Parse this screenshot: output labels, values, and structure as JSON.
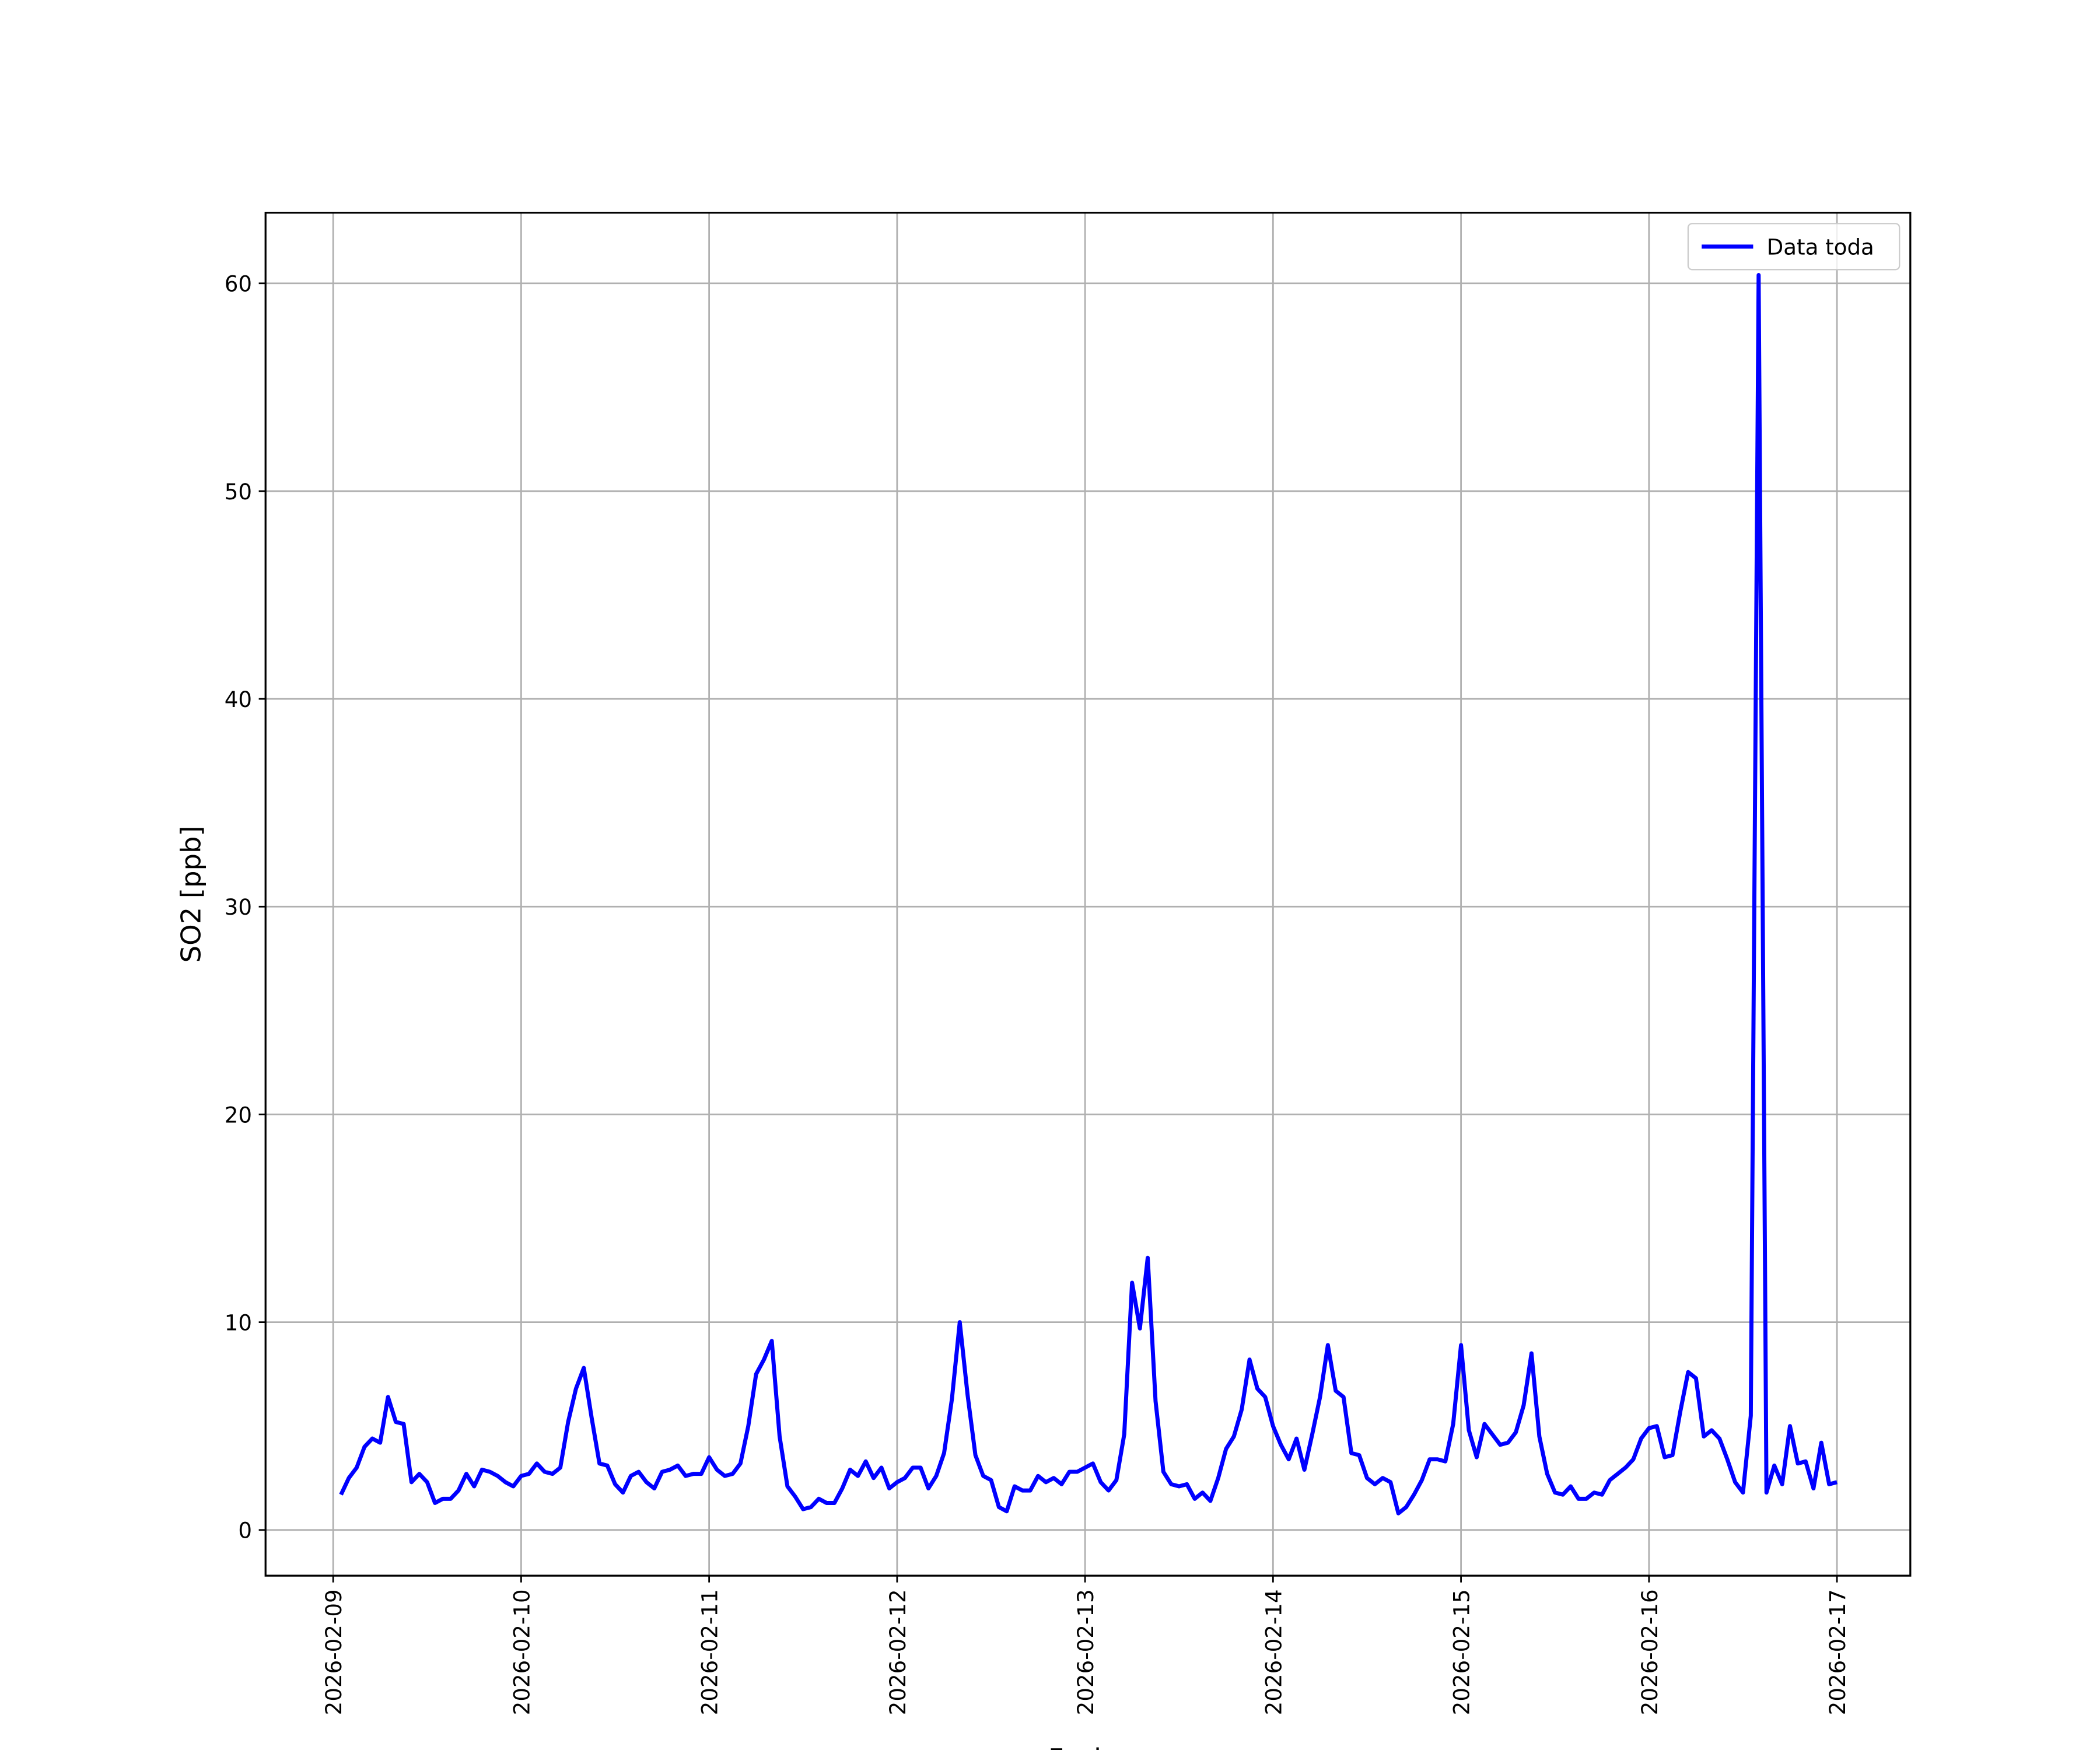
{
  "chart_data": {
    "type": "line",
    "xlabel": "Fecha",
    "ylabel": "SO2 [ppb]",
    "xlim": [
      "2026-02-08T15:22",
      "2026-02-17T09:22"
    ],
    "ylim": [
      -2.2,
      63.4
    ],
    "xticks": [
      "2026-02-09",
      "2026-02-10",
      "2026-02-11",
      "2026-02-12",
      "2026-02-13",
      "2026-02-14",
      "2026-02-15",
      "2026-02-16",
      "2026-02-17"
    ],
    "yticks": [
      0,
      10,
      20,
      30,
      40,
      50,
      60
    ],
    "grid": true,
    "legend": "upper right",
    "x": [
      "2026-02-09T01:00",
      "2026-02-09T02:00",
      "2026-02-09T03:00",
      "2026-02-09T04:00",
      "2026-02-09T05:00",
      "2026-02-09T06:00",
      "2026-02-09T07:00",
      "2026-02-09T08:00",
      "2026-02-09T09:00",
      "2026-02-09T10:00",
      "2026-02-09T11:00",
      "2026-02-09T12:00",
      "2026-02-09T13:00",
      "2026-02-09T14:00",
      "2026-02-09T15:00",
      "2026-02-09T16:00",
      "2026-02-09T17:00",
      "2026-02-09T18:00",
      "2026-02-09T19:00",
      "2026-02-09T20:00",
      "2026-02-09T21:00",
      "2026-02-09T22:00",
      "2026-02-09T23:00",
      "2026-02-10T00:00",
      "2026-02-10T01:00",
      "2026-02-10T02:00",
      "2026-02-10T03:00",
      "2026-02-10T04:00",
      "2026-02-10T05:00",
      "2026-02-10T06:00",
      "2026-02-10T07:00",
      "2026-02-10T08:00",
      "2026-02-10T09:00",
      "2026-02-10T10:00",
      "2026-02-10T11:00",
      "2026-02-10T12:00",
      "2026-02-10T13:00",
      "2026-02-10T14:00",
      "2026-02-10T15:00",
      "2026-02-10T16:00",
      "2026-02-10T17:00",
      "2026-02-10T18:00",
      "2026-02-10T19:00",
      "2026-02-10T20:00",
      "2026-02-10T21:00",
      "2026-02-10T22:00",
      "2026-02-10T23:00",
      "2026-02-11T00:00",
      "2026-02-11T01:00",
      "2026-02-11T02:00",
      "2026-02-11T03:00",
      "2026-02-11T04:00",
      "2026-02-11T05:00",
      "2026-02-11T06:00",
      "2026-02-11T07:00",
      "2026-02-11T08:00",
      "2026-02-11T09:00",
      "2026-02-11T10:00",
      "2026-02-11T11:00",
      "2026-02-11T12:00",
      "2026-02-11T13:00",
      "2026-02-11T14:00",
      "2026-02-11T15:00",
      "2026-02-11T16:00",
      "2026-02-11T17:00",
      "2026-02-11T18:00",
      "2026-02-11T19:00",
      "2026-02-11T20:00",
      "2026-02-11T21:00",
      "2026-02-11T22:00",
      "2026-02-11T23:00",
      "2026-02-12T00:00",
      "2026-02-12T01:00",
      "2026-02-12T02:00",
      "2026-02-12T03:00",
      "2026-02-12T04:00",
      "2026-02-12T05:00",
      "2026-02-12T06:00",
      "2026-02-12T07:00",
      "2026-02-12T08:00",
      "2026-02-12T09:00",
      "2026-02-12T10:00",
      "2026-02-12T11:00",
      "2026-02-12T12:00",
      "2026-02-12T13:00",
      "2026-02-12T14:00",
      "2026-02-12T15:00",
      "2026-02-12T16:00",
      "2026-02-12T17:00",
      "2026-02-12T18:00",
      "2026-02-12T19:00",
      "2026-02-12T20:00",
      "2026-02-12T21:00",
      "2026-02-12T22:00",
      "2026-02-12T23:00",
      "2026-02-13T00:00",
      "2026-02-13T01:00",
      "2026-02-13T02:00",
      "2026-02-13T03:00",
      "2026-02-13T04:00",
      "2026-02-13T05:00",
      "2026-02-13T06:00",
      "2026-02-13T07:00",
      "2026-02-13T08:00",
      "2026-02-13T09:00",
      "2026-02-13T10:00",
      "2026-02-13T11:00",
      "2026-02-13T12:00",
      "2026-02-13T13:00",
      "2026-02-13T14:00",
      "2026-02-13T15:00",
      "2026-02-13T16:00",
      "2026-02-13T17:00",
      "2026-02-13T18:00",
      "2026-02-13T19:00",
      "2026-02-13T20:00",
      "2026-02-13T21:00",
      "2026-02-13T22:00",
      "2026-02-13T23:00",
      "2026-02-14T00:00",
      "2026-02-14T01:00",
      "2026-02-14T02:00",
      "2026-02-14T03:00",
      "2026-02-14T04:00",
      "2026-02-14T05:00",
      "2026-02-14T06:00",
      "2026-02-14T07:00",
      "2026-02-14T08:00",
      "2026-02-14T09:00",
      "2026-02-14T10:00",
      "2026-02-14T11:00",
      "2026-02-14T12:00",
      "2026-02-14T13:00",
      "2026-02-14T14:00",
      "2026-02-14T15:00",
      "2026-02-14T16:00",
      "2026-02-14T17:00",
      "2026-02-14T18:00",
      "2026-02-14T19:00",
      "2026-02-14T20:00",
      "2026-02-14T21:00",
      "2026-02-14T22:00",
      "2026-02-14T23:00",
      "2026-02-15T00:00",
      "2026-02-15T01:00",
      "2026-02-15T02:00",
      "2026-02-15T03:00",
      "2026-02-15T04:00",
      "2026-02-15T05:00",
      "2026-02-15T06:00",
      "2026-02-15T07:00",
      "2026-02-15T08:00",
      "2026-02-15T09:00",
      "2026-02-15T10:00",
      "2026-02-15T11:00",
      "2026-02-15T12:00",
      "2026-02-15T13:00",
      "2026-02-15T14:00",
      "2026-02-15T15:00",
      "2026-02-15T16:00",
      "2026-02-15T17:00",
      "2026-02-15T18:00",
      "2026-02-15T19:00",
      "2026-02-15T20:00",
      "2026-02-15T21:00",
      "2026-02-15T22:00",
      "2026-02-15T23:00",
      "2026-02-16T00:00",
      "2026-02-16T01:00",
      "2026-02-16T02:00",
      "2026-02-16T03:00",
      "2026-02-16T04:00",
      "2026-02-16T05:00",
      "2026-02-16T06:00",
      "2026-02-16T07:00",
      "2026-02-16T08:00",
      "2026-02-16T09:00",
      "2026-02-16T10:00",
      "2026-02-16T11:00",
      "2026-02-16T12:00",
      "2026-02-16T13:00",
      "2026-02-16T14:00",
      "2026-02-16T15:00",
      "2026-02-16T16:00",
      "2026-02-16T17:00",
      "2026-02-16T18:00",
      "2026-02-16T19:00",
      "2026-02-16T20:00",
      "2026-02-16T21:00",
      "2026-02-16T22:00",
      "2026-02-16T23:00",
      "2026-02-17T00:00"
    ],
    "series": [
      {
        "name": "Data toda",
        "color": "#0000ff",
        "values": [
          1.7,
          2.5,
          3.0,
          4.0,
          4.4,
          4.2,
          6.4,
          5.2,
          5.1,
          2.3,
          2.7,
          2.3,
          1.3,
          1.5,
          1.5,
          1.9,
          2.7,
          2.1,
          2.9,
          2.8,
          2.6,
          2.3,
          2.1,
          2.6,
          2.7,
          3.2,
          2.8,
          2.7,
          3.0,
          5.2,
          6.8,
          7.8,
          5.4,
          3.2,
          3.1,
          2.2,
          1.8,
          2.6,
          2.8,
          2.3,
          2.0,
          2.8,
          2.9,
          3.1,
          2.6,
          2.7,
          2.7,
          3.5,
          2.9,
          2.6,
          2.7,
          3.2,
          5.0,
          7.5,
          8.2,
          9.1,
          4.5,
          2.1,
          1.6,
          1.0,
          1.1,
          1.5,
          1.3,
          1.3,
          2.0,
          2.9,
          2.6,
          3.3,
          2.5,
          3.0,
          2.0,
          2.3,
          2.5,
          3.0,
          3.0,
          2.0,
          2.6,
          3.7,
          6.3,
          10.0,
          6.5,
          3.6,
          2.6,
          2.4,
          1.1,
          0.9,
          2.1,
          1.9,
          1.9,
          2.6,
          2.3,
          2.5,
          2.2,
          2.8,
          2.8,
          3.0,
          3.2,
          2.3,
          1.9,
          2.4,
          4.6,
          11.9,
          9.7,
          13.1,
          6.2,
          2.8,
          2.2,
          2.1,
          2.2,
          1.5,
          1.8,
          1.4,
          2.5,
          3.9,
          4.5,
          5.8,
          8.2,
          6.8,
          6.4,
          5.0,
          4.1,
          3.4,
          4.4,
          2.9,
          4.6,
          6.4,
          8.9,
          6.7,
          6.4,
          3.7,
          3.6,
          2.5,
          2.2,
          2.5,
          2.3,
          0.8,
          1.1,
          1.7,
          2.4,
          3.4,
          3.4,
          3.3,
          5.1,
          8.9,
          4.8,
          3.5,
          5.1,
          4.6,
          4.1,
          4.2,
          4.7,
          6.0,
          8.5,
          4.5,
          2.7,
          1.8,
          1.7,
          2.1,
          1.5,
          1.5,
          1.8,
          1.7,
          2.4,
          2.7,
          3.0,
          3.4,
          4.4,
          4.9,
          5.0,
          3.5,
          3.6,
          5.7,
          7.6,
          7.3,
          4.5,
          4.8,
          4.4,
          3.4,
          2.3,
          1.8,
          5.5,
          60.4,
          1.8,
          3.1,
          2.2,
          5.0,
          3.2,
          3.3,
          2.0,
          4.2,
          2.2,
          2.3
        ]
      }
    ]
  }
}
